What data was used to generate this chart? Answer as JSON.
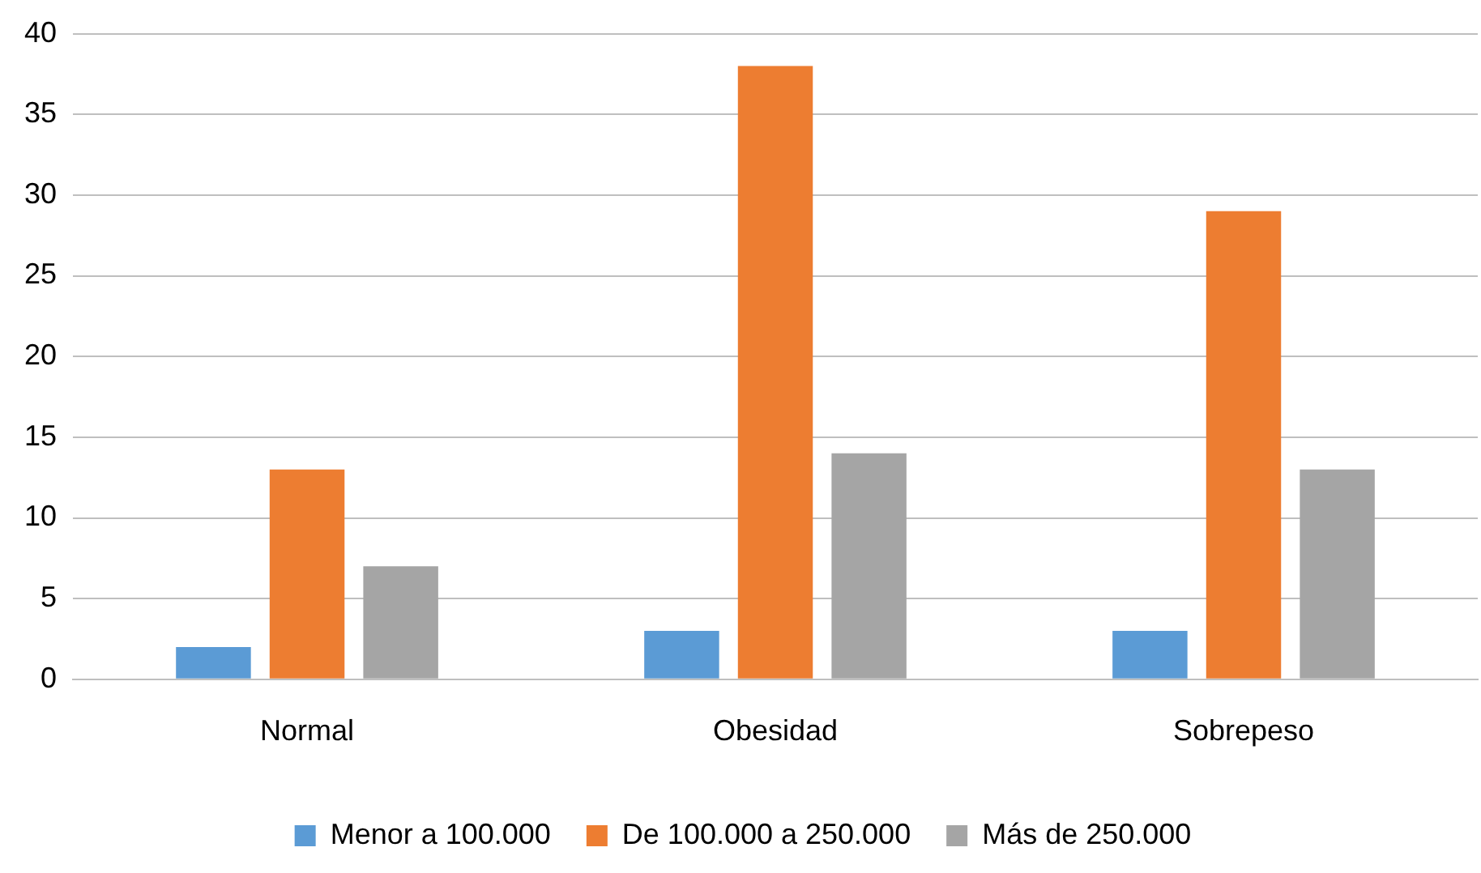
{
  "chart_data": {
    "type": "bar",
    "categories": [
      "Normal",
      "Obesidad",
      "Sobrepeso"
    ],
    "series": [
      {
        "name": "Menor a 100.000",
        "color": "#5b9bd5",
        "values": [
          2,
          3,
          3
        ]
      },
      {
        "name": "De 100.000 a 250.000",
        "color": "#ed7d31",
        "values": [
          13,
          38,
          29
        ]
      },
      {
        "name": "Más de 250.000",
        "color": "#a5a5a5",
        "values": [
          7,
          14,
          13
        ]
      }
    ],
    "ylim": [
      0,
      40
    ],
    "yticks": [
      0,
      5,
      10,
      15,
      20,
      25,
      30,
      35,
      40
    ],
    "grid": "y",
    "legend": "bottom"
  }
}
